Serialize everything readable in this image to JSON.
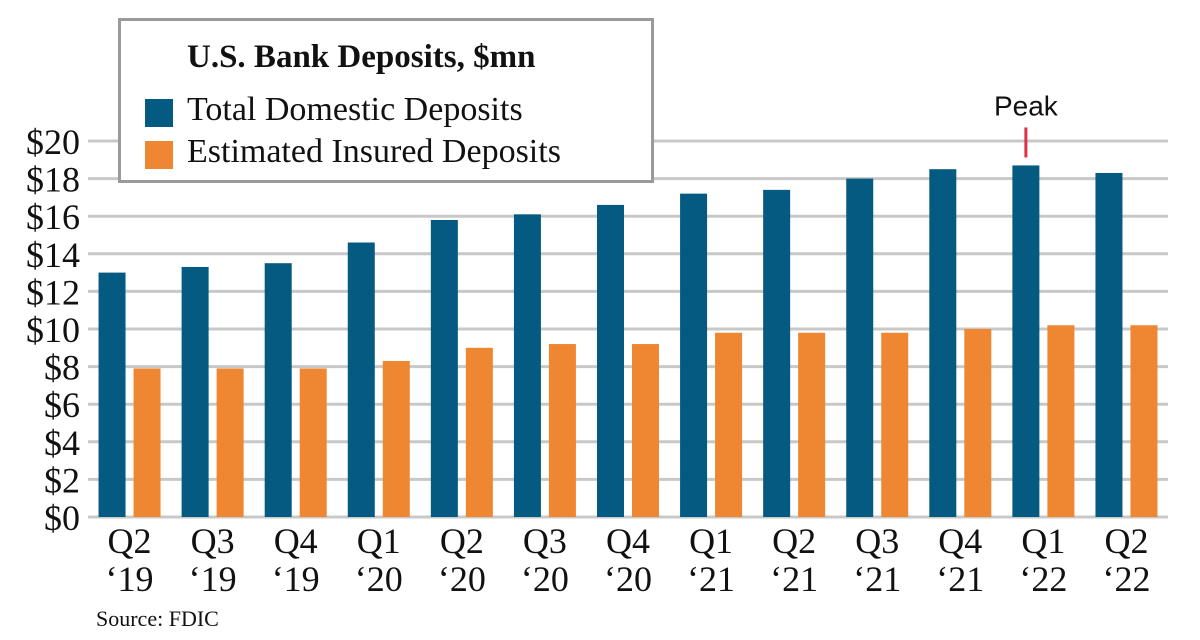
{
  "chart_data": {
    "type": "bar",
    "title": "U.S. Bank Deposits, $mn",
    "categories": [
      [
        "Q2",
        "‘19"
      ],
      [
        "Q3",
        "‘19"
      ],
      [
        "Q4",
        "‘19"
      ],
      [
        "Q1",
        "‘20"
      ],
      [
        "Q2",
        "‘20"
      ],
      [
        "Q3",
        "‘20"
      ],
      [
        "Q4",
        "‘20"
      ],
      [
        "Q1",
        "‘21"
      ],
      [
        "Q2",
        "‘21"
      ],
      [
        "Q3",
        "‘21"
      ],
      [
        "Q4",
        "‘21"
      ],
      [
        "Q1",
        "‘22"
      ],
      [
        "Q2",
        "‘22"
      ]
    ],
    "series": [
      {
        "name": "Total Domestic Deposits",
        "color": "#045a80",
        "values": [
          13.0,
          13.3,
          13.5,
          14.6,
          15.8,
          16.1,
          16.6,
          17.2,
          17.4,
          18.0,
          18.5,
          18.7,
          18.3
        ]
      },
      {
        "name": "Estimated Insured Deposits",
        "color": "#ef8631",
        "values": [
          7.9,
          7.9,
          7.9,
          8.3,
          9.0,
          9.2,
          9.2,
          9.8,
          9.8,
          9.8,
          10.0,
          10.2,
          10.2
        ]
      }
    ],
    "y_ticks": [
      "$0",
      "$2",
      "$4",
      "$6",
      "$8",
      "$10",
      "$12",
      "$14",
      "$16",
      "$18",
      "$20"
    ],
    "ylim": [
      0,
      20
    ],
    "grid": true,
    "grid_color": "#c8c8c8",
    "legend_position": "top-left",
    "annotation": {
      "text": "Peak",
      "category_index": 11,
      "color": "#e03145"
    },
    "source": "Source: FDIC"
  }
}
